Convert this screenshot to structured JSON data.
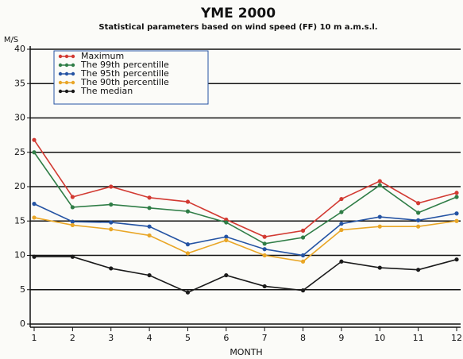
{
  "chart_data": {
    "type": "line",
    "title": "YME 2000",
    "subtitle": "Statistical parameters based on wind speed (FF) 10 m a.m.s.l.",
    "y_label": "M/S",
    "x_label": "MONTH",
    "x": [
      1,
      2,
      3,
      4,
      5,
      6,
      7,
      8,
      9,
      10,
      11,
      12
    ],
    "xlim": [
      1,
      12
    ],
    "xticks": [
      1,
      2,
      3,
      4,
      5,
      6,
      7,
      8,
      9,
      10,
      11,
      12
    ],
    "ylim": [
      0,
      40
    ],
    "yticks": [
      0,
      5,
      10,
      15,
      20,
      25,
      30,
      35,
      40
    ],
    "grid": true,
    "legend": "upper left",
    "series": [
      {
        "name": "Maximum",
        "color": "#d23a32",
        "values": [
          26.8,
          18.5,
          20,
          18.4,
          17.8,
          15.2,
          12.7,
          13.6,
          18.2,
          20.8,
          17.6,
          19.1
        ]
      },
      {
        "name": "The 99th percentille",
        "color": "#2f7d46",
        "values": [
          25,
          17,
          17.4,
          16.9,
          16.4,
          14.8,
          11.7,
          12.6,
          16.3,
          20.2,
          16.2,
          18.5
        ]
      },
      {
        "name": "The 95th percentille",
        "color": "#2453a3",
        "values": [
          17.5,
          14.9,
          14.8,
          14.2,
          11.6,
          12.7,
          10.9,
          10,
          14.6,
          15.6,
          15.1,
          16.1
        ]
      },
      {
        "name": "The 90th percentille",
        "color": "#e9a626",
        "values": [
          15.5,
          14.4,
          13.8,
          12.9,
          10.3,
          12.2,
          10,
          9.1,
          13.7,
          14.2,
          14.2,
          15
        ]
      },
      {
        "name": "The median",
        "color": "#1a1a1a",
        "values": [
          9.8,
          9.8,
          8.1,
          7.1,
          4.6,
          7.1,
          5.5,
          4.9,
          9.1,
          8.2,
          7.9,
          9.4
        ]
      }
    ]
  }
}
